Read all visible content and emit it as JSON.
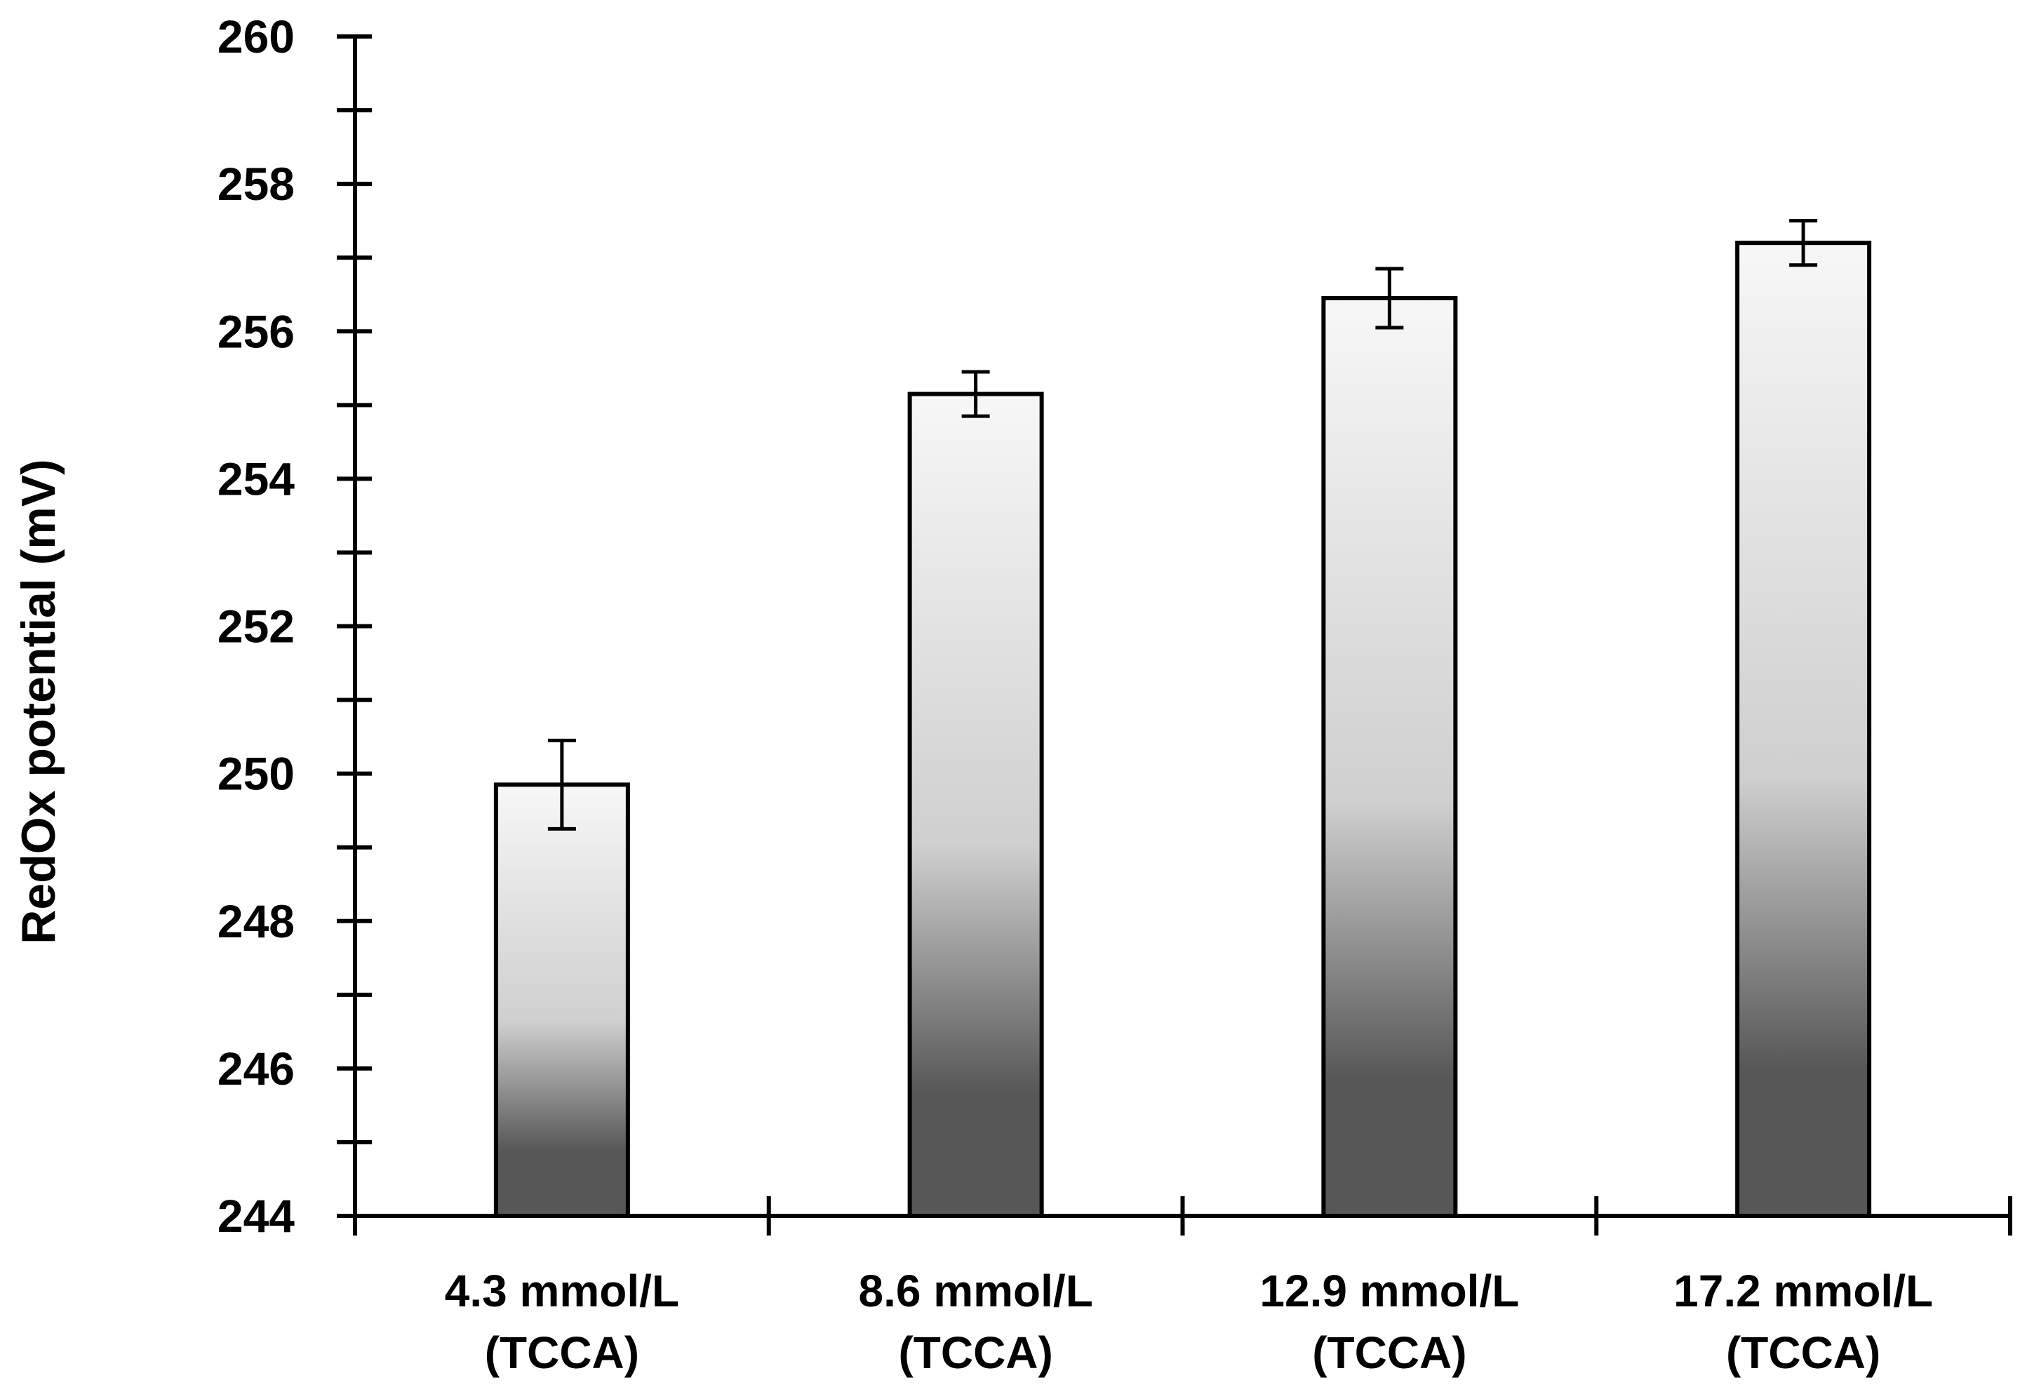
{
  "chart_data": {
    "type": "bar",
    "title": "",
    "xlabel": "",
    "ylabel": "RedOx potential (mV)",
    "categories": [
      [
        "4.3 mmol/L",
        "(TCCA)"
      ],
      [
        "8.6 mmol/L",
        "(TCCA)"
      ],
      [
        "12.9 mmol/L",
        "(TCCA)"
      ],
      [
        "17.2 mmol/L",
        "(TCCA)"
      ]
    ],
    "values": [
      249.85,
      255.15,
      256.45,
      257.2
    ],
    "errors": [
      0.6,
      0.3,
      0.4,
      0.3
    ],
    "ylim": [
      244,
      260
    ],
    "yticks": [
      "244",
      "246",
      "248",
      "250",
      "252",
      "254",
      "256",
      "258",
      "260"
    ],
    "ytick_values": [
      244,
      246,
      248,
      250,
      252,
      254,
      256,
      258,
      260
    ],
    "y_minor_step": 1,
    "grid": false,
    "legend": "none",
    "colors": {
      "bar_top": "#f7f7f7",
      "bar_mid": "#cfcfcf",
      "bar_bottom": "#575757",
      "outline": "#000000",
      "axis": "#000000"
    }
  }
}
